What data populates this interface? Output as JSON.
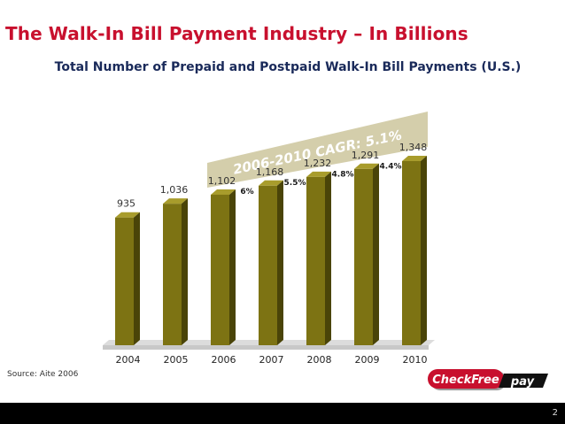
{
  "slide": {
    "title": "The Walk-In Bill Payment Industry – In Billions",
    "subtitle": "Total Number of Prepaid and Postpaid Walk-In Bill Payments (U.S.)",
    "source": "Source: Aite 2006",
    "page_number": "2",
    "logo": {
      "word": "CheckFree",
      "suffix": "pay"
    }
  },
  "colors": {
    "title": "#c8102e",
    "subtitle": "#1a2a5a",
    "bar_front": "#7d7313",
    "bar_top": "#a89c2c",
    "bar_side": "#4a4408",
    "banner": "#d4ceab",
    "floor": "#c8c8c8"
  },
  "chart_data": {
    "type": "bar",
    "categories": [
      "2004",
      "2005",
      "2006",
      "2007",
      "2008",
      "2009",
      "2010"
    ],
    "values": [
      935,
      1036,
      1102,
      1168,
      1232,
      1291,
      1348
    ],
    "value_labels": [
      "935",
      "1,036",
      "1,102",
      "1,168",
      "1,232",
      "1,291",
      "1,348"
    ],
    "growth_labels": [
      "6%",
      "5.5%",
      "4.8%",
      "4.4%"
    ],
    "growth_between": [
      [
        "2006",
        "2007"
      ],
      [
        "2007",
        "2008"
      ],
      [
        "2008",
        "2009"
      ],
      [
        "2009",
        "2010"
      ]
    ],
    "annotation": "2006-2010 CAGR: 5.1%",
    "ylim": [
      0,
      1348
    ],
    "title": "Total Number of Prepaid and Postpaid Walk-In Bill Payments (U.S.)",
    "xlabel": "",
    "ylabel": "",
    "grid": false
  }
}
